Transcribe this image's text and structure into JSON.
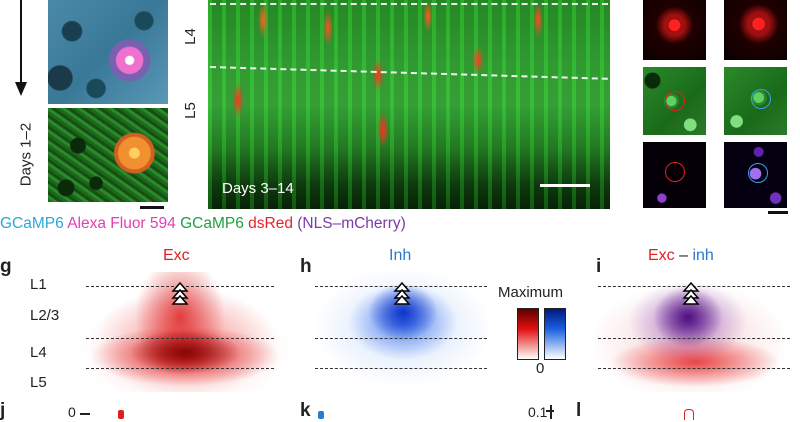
{
  "top_panels": {
    "days_1_2_label": "Days 1–2",
    "days_3_14_label": "Days 3–14",
    "layer_labels": [
      "L4",
      "L5"
    ]
  },
  "legend": {
    "gcamp6_a": "GCaMP6",
    "alexa": "Alexa Fluor 594",
    "gcamp6_b": "GCaMP6",
    "dsred": "dsRed",
    "nls": "(NLS–mCherry)",
    "colors": {
      "cyan": "#2aa7d8",
      "magenta": "#e040b0",
      "green": "#1fa040",
      "red": "#e8202a",
      "purple": "#7a3aa8"
    }
  },
  "maps": {
    "g": {
      "letter": "g",
      "title": "Exc"
    },
    "h": {
      "letter": "h",
      "title": "Inh"
    },
    "i": {
      "letter": "i",
      "title_exc": "Exc",
      "title_sep": " – ",
      "title_inh": "inh"
    },
    "layers": [
      "L1",
      "L2/3",
      "L4",
      "L5"
    ],
    "colorbar_max": "Maximum",
    "colorbar_min": "0"
  },
  "bottom": {
    "j": "j",
    "k": "k",
    "l": "l",
    "j_tick": "0",
    "k_tick": "0.1"
  }
}
